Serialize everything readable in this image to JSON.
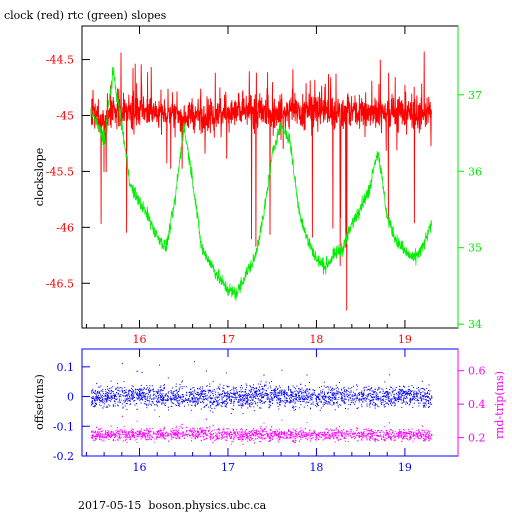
{
  "footer_text": "2017-05-15  boson.physics.ubc.ca",
  "colors": {
    "clock": "#ff0000",
    "rtc": "#00ee00",
    "offset": "#0000ff",
    "rndtrip": "#ff00ff",
    "axis": "#000000"
  },
  "chart_data": [
    {
      "type": "line",
      "title": "clock (red) rtc (green) slopes",
      "xlabel": "",
      "ylabel": "clockslope",
      "y2label": "",
      "xlim": [
        15.35,
        19.6
      ],
      "ylim": [
        -46.9,
        -44.2
      ],
      "y2lim": [
        33.95,
        37.9
      ],
      "xticks": [
        16,
        17,
        18,
        19
      ],
      "yticks": [
        -44.5,
        -45,
        -45.5,
        -46,
        -46.5
      ],
      "y2ticks": [
        37,
        36,
        35,
        34
      ],
      "grid": false,
      "series": [
        {
          "name": "clock",
          "axis": "left",
          "color": "#ff0000",
          "x": [
            15.45,
            15.55,
            15.65,
            15.8,
            16.0,
            16.25,
            16.5,
            16.75,
            17.0,
            17.25,
            17.5,
            17.75,
            18.0,
            18.25,
            18.5,
            18.75,
            19.0,
            19.3
          ],
          "y": [
            -45.0,
            -45.05,
            -45.0,
            -44.98,
            -44.96,
            -44.97,
            -45.0,
            -45.0,
            -44.98,
            -44.96,
            -44.97,
            -44.96,
            -44.95,
            -44.97,
            -44.97,
            -44.96,
            -44.97,
            -44.98
          ]
        },
        {
          "name": "rtc",
          "axis": "right",
          "color": "#00ee00",
          "x": [
            15.45,
            15.6,
            15.7,
            15.8,
            15.9,
            16.0,
            16.1,
            16.2,
            16.3,
            16.4,
            16.5,
            16.6,
            16.7,
            16.8,
            16.9,
            17.0,
            17.1,
            17.2,
            17.3,
            17.4,
            17.5,
            17.55,
            17.6,
            17.7,
            17.8,
            17.9,
            18.0,
            18.1,
            18.2,
            18.3,
            18.4,
            18.5,
            18.6,
            18.65,
            18.7,
            18.8,
            18.9,
            19.0,
            19.1,
            19.2,
            19.3
          ],
          "y": [
            36.8,
            36.4,
            37.3,
            36.6,
            35.8,
            35.6,
            35.4,
            35.15,
            35.0,
            35.6,
            36.6,
            35.9,
            35.0,
            34.8,
            34.6,
            34.45,
            34.4,
            34.65,
            34.85,
            35.4,
            36.2,
            36.45,
            36.6,
            36.4,
            35.5,
            35.1,
            34.85,
            34.75,
            34.9,
            35.0,
            35.3,
            35.55,
            35.75,
            36.1,
            36.25,
            35.4,
            35.1,
            34.95,
            34.85,
            35.0,
            35.3
          ]
        }
      ]
    },
    {
      "type": "scatter",
      "title": "",
      "xlabel": "",
      "ylabel": "offset(ms)",
      "y2label": "rnd-trip(ms)",
      "xlim": [
        15.35,
        19.6
      ],
      "ylim": [
        -0.2,
        0.16
      ],
      "y2lim": [
        0.09,
        0.73
      ],
      "xticks": [
        16,
        17,
        18,
        19
      ],
      "yticks": [
        0.1,
        0,
        -0.1,
        -0.2
      ],
      "y2ticks": [
        0.6,
        0.4,
        0.2
      ],
      "grid": false,
      "series": [
        {
          "name": "offset",
          "axis": "left",
          "color": "#0000ff",
          "x": [
            15.45,
            16.0,
            16.5,
            17.0,
            17.5,
            18.0,
            18.5,
            19.0,
            19.3
          ],
          "y": [
            0.0,
            0.005,
            0.0,
            0.0,
            0.005,
            0.0,
            0.0,
            0.005,
            0.0
          ]
        },
        {
          "name": "rnd-trip",
          "axis": "right",
          "color": "#ff00ff",
          "x": [
            15.45,
            16.0,
            16.5,
            17.0,
            17.5,
            18.0,
            18.5,
            19.0,
            19.3
          ],
          "y": [
            0.22,
            0.22,
            0.23,
            0.22,
            0.22,
            0.22,
            0.22,
            0.22,
            0.22
          ]
        }
      ]
    }
  ]
}
